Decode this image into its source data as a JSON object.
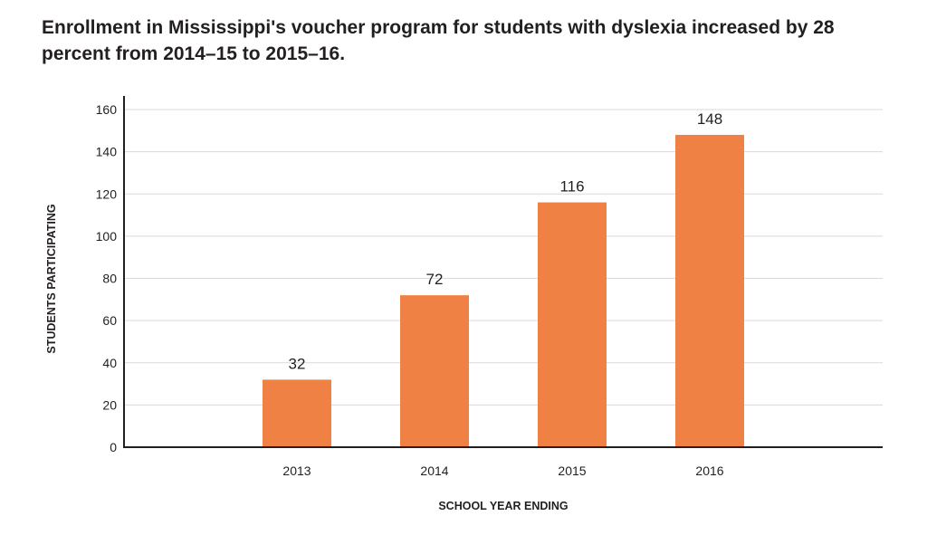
{
  "title": "Enrollment in Mississippi's voucher program for students with dyslexia increased by 28 percent from 2014–15 to 2015–16.",
  "colors": {
    "bar": "#f08144",
    "gridline": "#d9d9d9",
    "axis": "#231f20",
    "text": "#231f20"
  },
  "chart_data": {
    "type": "bar",
    "title": "Enrollment in Mississippi's voucher program for students with dyslexia increased by 28 percent from 2014–15 to 2015–16.",
    "xlabel": "SCHOOL YEAR ENDING",
    "ylabel": "STUDENTS PARTICIPATING",
    "categories": [
      "2013",
      "2014",
      "2015",
      "2016"
    ],
    "values": [
      32,
      72,
      116,
      148
    ],
    "data_labels": [
      "32",
      "72",
      "116",
      "148"
    ],
    "ylim": [
      0,
      160
    ],
    "yticks": [
      0,
      20,
      40,
      60,
      80,
      100,
      120,
      140,
      160
    ],
    "grid": true,
    "legend": "none"
  }
}
